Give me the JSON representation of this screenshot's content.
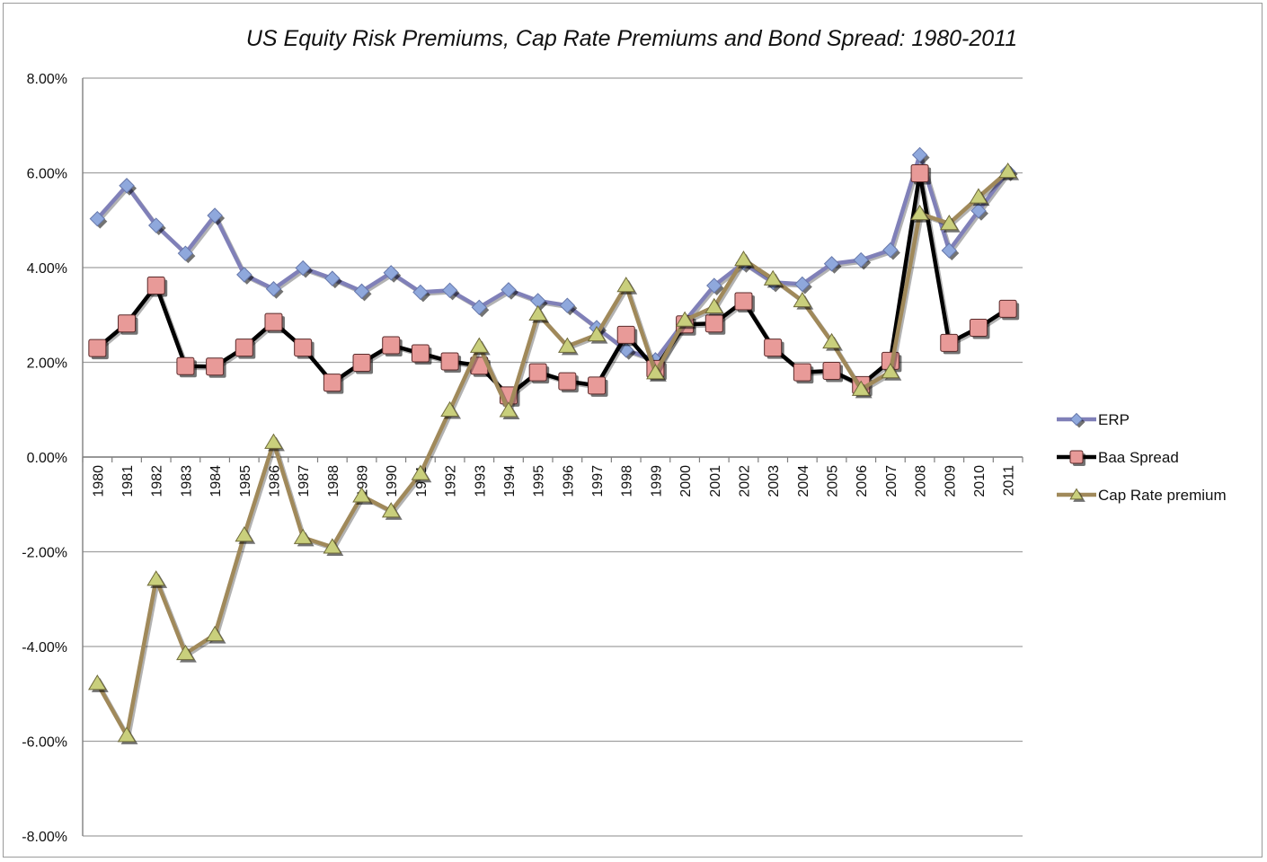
{
  "chart_data": {
    "type": "line",
    "title": "US Equity Risk Premiums, Cap Rate Premiums and Bond Spread: 1980-2011",
    "xlabel": "",
    "ylabel": "",
    "ylim": [
      -0.08,
      0.08
    ],
    "yticks": [
      {
        "value": 0.08,
        "label": "8.00%"
      },
      {
        "value": 0.06,
        "label": "6.00%"
      },
      {
        "value": 0.04,
        "label": "4.00%"
      },
      {
        "value": 0.02,
        "label": "2.00%"
      },
      {
        "value": 0.0,
        "label": "0.00%"
      },
      {
        "value": -0.02,
        "label": "-2.00%"
      },
      {
        "value": -0.04,
        "label": "-4.00%"
      },
      {
        "value": -0.06,
        "label": "-6.00%"
      },
      {
        "value": -0.08,
        "label": "-8.00%"
      }
    ],
    "grid": "horizontal",
    "legend_position": "right",
    "categories": [
      "1980",
      "1981",
      "1982",
      "1983",
      "1984",
      "1985",
      "1986",
      "1987",
      "1988",
      "1989",
      "1990",
      "1991",
      "1992",
      "1993",
      "1994",
      "1995",
      "1996",
      "1997",
      "1998",
      "1999",
      "2000",
      "2001",
      "2002",
      "2003",
      "2004",
      "2005",
      "2006",
      "2007",
      "2008",
      "2009",
      "2010",
      "2011"
    ],
    "series": [
      {
        "name": "ERP",
        "marker": "diamond",
        "line_color": "#8080b8",
        "marker_color": "#8fa8dc",
        "values": [
          0.0503,
          0.0573,
          0.0489,
          0.043,
          0.051,
          0.0385,
          0.0355,
          0.0399,
          0.0377,
          0.035,
          0.0389,
          0.0348,
          0.0352,
          0.0316,
          0.0353,
          0.033,
          0.032,
          0.0273,
          0.0226,
          0.0205,
          0.0287,
          0.0362,
          0.041,
          0.0369,
          0.0365,
          0.0408,
          0.0416,
          0.0437,
          0.0638,
          0.0436,
          0.052,
          0.0603
        ]
      },
      {
        "name": "Baa Spread",
        "marker": "square",
        "line_color": "#000000",
        "marker_color": "#e89a98",
        "values": [
          0.023,
          0.0282,
          0.0362,
          0.0192,
          0.0191,
          0.0231,
          0.0285,
          0.0231,
          0.0157,
          0.0199,
          0.0236,
          0.0219,
          0.0202,
          0.0193,
          0.013,
          0.0179,
          0.016,
          0.0151,
          0.0258,
          0.0186,
          0.028,
          0.0282,
          0.0329,
          0.0231,
          0.0179,
          0.0182,
          0.0152,
          0.0203,
          0.0599,
          0.0241,
          0.0273,
          0.0313
        ]
      },
      {
        "name": "Cap Rate premium",
        "marker": "triangle",
        "line_color": "#a0895a",
        "marker_color": "#c9cf7c",
        "values": [
          -0.0478,
          -0.0588,
          -0.0258,
          -0.0415,
          -0.0375,
          -0.0165,
          0.0031,
          -0.017,
          -0.019,
          -0.0082,
          -0.0114,
          -0.0035,
          0.0099,
          0.0234,
          0.0098,
          0.0302,
          0.0234,
          0.0258,
          0.0362,
          0.0178,
          0.0289,
          0.0317,
          0.0417,
          0.0376,
          0.033,
          0.0243,
          0.0143,
          0.018,
          0.0514,
          0.0493,
          0.0549,
          0.0603
        ]
      }
    ]
  }
}
